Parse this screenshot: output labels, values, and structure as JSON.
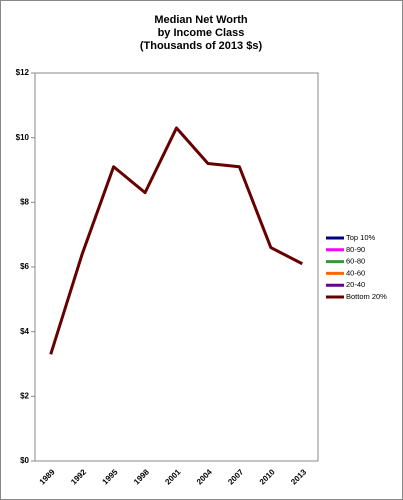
{
  "chart_data": {
    "type": "line",
    "title": [
      "Median Net Worth",
      "by Income Class",
      "(Thousands of 2013 $s)"
    ],
    "categories": [
      "1989",
      "1992",
      "1995",
      "1998",
      "2001",
      "2004",
      "2007",
      "2010",
      "2013"
    ],
    "series": [
      {
        "name": "Top 10%",
        "color": "#000080",
        "values": [
          null,
          null,
          null,
          null,
          null,
          null,
          null,
          null,
          null
        ]
      },
      {
        "name": "80-90",
        "color": "#ff00ff",
        "values": [
          null,
          null,
          null,
          null,
          null,
          null,
          null,
          null,
          null
        ]
      },
      {
        "name": "60-80",
        "color": "#339933",
        "values": [
          null,
          null,
          null,
          null,
          null,
          null,
          null,
          null,
          null
        ]
      },
      {
        "name": "40-60",
        "color": "#ff6600",
        "values": [
          null,
          null,
          null,
          null,
          null,
          null,
          null,
          null,
          null
        ]
      },
      {
        "name": "20-40",
        "color": "#660099",
        "values": [
          null,
          null,
          null,
          null,
          null,
          null,
          null,
          null,
          null
        ]
      },
      {
        "name": "Bottom 20%",
        "color": "#660000",
        "values": [
          3.3,
          6.4,
          9.1,
          8.3,
          10.3,
          9.2,
          9.1,
          6.6,
          6.1
        ]
      }
    ],
    "ylim": [
      0,
      12
    ],
    "yticks": [
      {
        "value": 0,
        "label": "$0"
      },
      {
        "value": 2,
        "label": "$2"
      },
      {
        "value": 4,
        "label": "$4"
      },
      {
        "value": 6,
        "label": "$6"
      },
      {
        "value": 8,
        "label": "$8"
      },
      {
        "value": 10,
        "label": "$10"
      },
      {
        "value": 12,
        "label": "$12"
      }
    ],
    "grid": false,
    "legend": "right"
  }
}
